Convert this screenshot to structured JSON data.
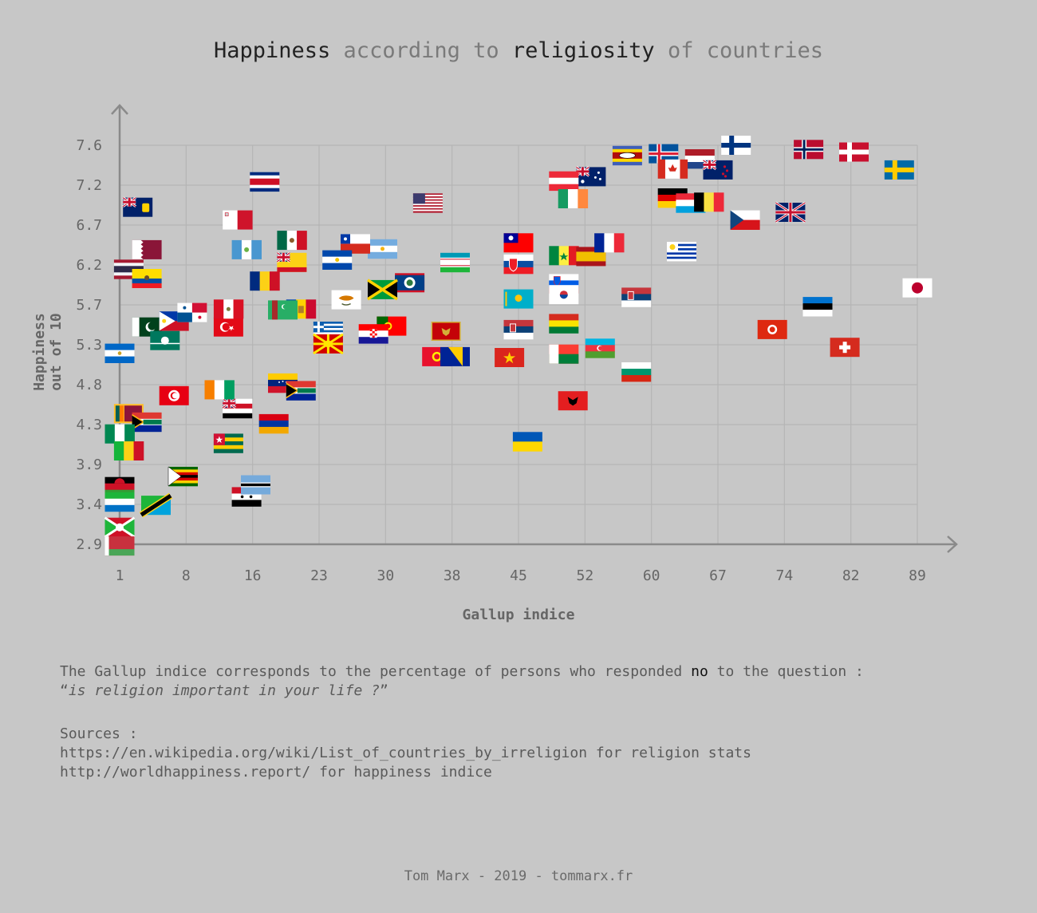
{
  "title": {
    "part1": "Happiness",
    "part2": " according to ",
    "part3": "religiosity",
    "part4": " of countries"
  },
  "x_axis_title": "Gallup indice",
  "y_axis_title": "Happiness out of 10",
  "note": {
    "line1_a": "The Gallup indice corresponds to the percentage of persons who responded ",
    "line1_b": "no",
    "line1_c": " to the question :",
    "line2_open": "“",
    "line2_q": "is religion important in your life ?",
    "line2_close": "”"
  },
  "sources": {
    "heading": "Sources :",
    "line1": "https://en.wikipedia.org/wiki/List_of_countries_by_irreligion for religion stats",
    "line2": "http://worldhappiness.report/ for happiness indice"
  },
  "footer": "Tom Marx - 2019 - tommarx.fr",
  "chart_data": {
    "type": "scatter",
    "title": "Happiness according to religiosity of countries",
    "xlabel": "Gallup indice",
    "ylabel": "Happiness out of 10",
    "x_ticks": [
      "1",
      "8",
      "16",
      "23",
      "30",
      "38",
      "45",
      "52",
      "60",
      "67",
      "74",
      "82",
      "89"
    ],
    "y_ticks": [
      "7.6",
      "7.2",
      "6.7",
      "6.2",
      "5.7",
      "5.3",
      "4.8",
      "4.3",
      "3.9",
      "3.4",
      "2.9"
    ],
    "xlim": [
      1,
      89
    ],
    "ylim": [
      2.9,
      7.6
    ],
    "grid": true,
    "marker": "country flags",
    "points": [
      {
        "flag": "finland",
        "x": 69,
        "y": 7.6
      },
      {
        "flag": "norway",
        "x": 77,
        "y": 7.55
      },
      {
        "flag": "denmark",
        "x": 82,
        "y": 7.52
      },
      {
        "flag": "sweden",
        "x": 87,
        "y": 7.31
      },
      {
        "flag": "iceland",
        "x": 61,
        "y": 7.5
      },
      {
        "flag": "eswatini",
        "x": 57,
        "y": 7.48
      },
      {
        "flag": "netherlands",
        "x": 65,
        "y": 7.44
      },
      {
        "flag": "canada",
        "x": 62,
        "y": 7.32
      },
      {
        "flag": "new_zealand",
        "x": 67,
        "y": 7.31
      },
      {
        "flag": "australia",
        "x": 53,
        "y": 7.23
      },
      {
        "flag": "austria",
        "x": 50,
        "y": 7.18
      },
      {
        "flag": "ireland",
        "x": 51,
        "y": 6.97
      },
      {
        "flag": "germany",
        "x": 62,
        "y": 6.98
      },
      {
        "flag": "luxembourg",
        "x": 64,
        "y": 6.92
      },
      {
        "flag": "belgium",
        "x": 66,
        "y": 6.93
      },
      {
        "flag": "czech",
        "x": 70,
        "y": 6.72
      },
      {
        "flag": "uk",
        "x": 75,
        "y": 6.81
      },
      {
        "flag": "usa",
        "x": 35,
        "y": 6.92
      },
      {
        "flag": "costa_rica",
        "x": 17,
        "y": 7.17
      },
      {
        "flag": "turks_caicos",
        "x": 3,
        "y": 6.87
      },
      {
        "flag": "taiwan",
        "x": 45,
        "y": 6.45
      },
      {
        "flag": "senegal",
        "x": 50,
        "y": 6.3
      },
      {
        "flag": "spain",
        "x": 53,
        "y": 6.29
      },
      {
        "flag": "france",
        "x": 55,
        "y": 6.45
      },
      {
        "flag": "uruguay",
        "x": 63,
        "y": 6.35
      },
      {
        "flag": "slovakia",
        "x": 45,
        "y": 6.2
      },
      {
        "flag": "slovenia",
        "x": 50,
        "y": 5.97
      },
      {
        "flag": "south_korea",
        "x": 50,
        "y": 5.84
      },
      {
        "flag": "serbia",
        "x": 58,
        "y": 5.81
      },
      {
        "flag": "japan",
        "x": 89,
        "y": 5.92
      },
      {
        "flag": "estonia",
        "x": 78,
        "y": 5.7
      },
      {
        "flag": "hong_kong",
        "x": 73,
        "y": 5.43
      },
      {
        "flag": "switzerland",
        "x": 81,
        "y": 5.22
      },
      {
        "flag": "kazakhstan",
        "x": 45,
        "y": 5.79
      },
      {
        "flag": "serbia_2",
        "x": 45,
        "y": 5.43
      },
      {
        "flag": "bolivia",
        "x": 50,
        "y": 5.5
      },
      {
        "flag": "madagascar",
        "x": 50,
        "y": 5.14
      },
      {
        "flag": "azerbaijan",
        "x": 54,
        "y": 5.21
      },
      {
        "flag": "bulgaria",
        "x": 58,
        "y": 4.93
      },
      {
        "flag": "vietnam",
        "x": 44,
        "y": 5.1
      },
      {
        "flag": "albania",
        "x": 51,
        "y": 4.59
      },
      {
        "flag": "ukraine",
        "x": 46,
        "y": 4.11
      },
      {
        "flag": "uzbekistan",
        "x": 38,
        "y": 6.22
      },
      {
        "flag": "belize",
        "x": 33,
        "y": 5.98
      },
      {
        "flag": "jamaica",
        "x": 30,
        "y": 5.9
      },
      {
        "flag": "argentina",
        "x": 30,
        "y": 6.38
      },
      {
        "flag": "chile",
        "x": 27,
        "y": 6.44
      },
      {
        "flag": "el_salvador",
        "x": 25,
        "y": 6.25
      },
      {
        "flag": "cyprus",
        "x": 26,
        "y": 5.78
      },
      {
        "flag": "portugal",
        "x": 31,
        "y": 5.47
      },
      {
        "flag": "croatia",
        "x": 29,
        "y": 5.38
      },
      {
        "flag": "montenegro",
        "x": 37,
        "y": 5.41
      },
      {
        "flag": "kyrgyzstan",
        "x": 36,
        "y": 5.11
      },
      {
        "flag": "bosnia",
        "x": 38,
        "y": 5.11
      },
      {
        "flag": "greece",
        "x": 24,
        "y": 5.41
      },
      {
        "flag": "macedonia",
        "x": 24,
        "y": 5.26
      },
      {
        "flag": "moldova",
        "x": 21,
        "y": 5.67
      },
      {
        "flag": "turkmenistan",
        "x": 19,
        "y": 5.66
      },
      {
        "flag": "mexico",
        "x": 20,
        "y": 6.48
      },
      {
        "flag": "colombia",
        "x": 20,
        "y": 6.22
      },
      {
        "flag": "romania",
        "x": 17,
        "y": 6.0
      },
      {
        "flag": "guatemala",
        "x": 15,
        "y": 6.37
      },
      {
        "flag": "malta",
        "x": 14,
        "y": 6.72
      },
      {
        "flag": "qatar",
        "x": 4,
        "y": 6.37
      },
      {
        "flag": "thailand",
        "x": 2,
        "y": 6.14
      },
      {
        "flag": "ecuador",
        "x": 4,
        "y": 6.03
      },
      {
        "flag": "venezuela",
        "x": 19,
        "y": 4.8
      },
      {
        "flag": "south_africa_2",
        "x": 21,
        "y": 4.71
      },
      {
        "flag": "armenia",
        "x": 18,
        "y": 4.32
      },
      {
        "flag": "zambia_group",
        "x": 14,
        "y": 4.5
      },
      {
        "flag": "togo",
        "x": 13,
        "y": 4.09
      },
      {
        "flag": "syria",
        "x": 15,
        "y": 3.46
      },
      {
        "flag": "botswana",
        "x": 16,
        "y": 3.6
      },
      {
        "flag": "ivory_coast",
        "x": 12,
        "y": 4.72
      },
      {
        "flag": "tunisia",
        "x": 7,
        "y": 4.65
      },
      {
        "flag": "sri_lanka",
        "x": 2,
        "y": 4.44
      },
      {
        "flag": "south_africa",
        "x": 4,
        "y": 4.34
      },
      {
        "flag": "nigeria",
        "x": 1,
        "y": 4.2
      },
      {
        "flag": "mali",
        "x": 2,
        "y": 4.0
      },
      {
        "flag": "zimbabwe",
        "x": 8,
        "y": 3.7
      },
      {
        "flag": "tanzania",
        "x": 5,
        "y": 3.36
      },
      {
        "flag": "malawi",
        "x": 1,
        "y": 3.58
      },
      {
        "flag": "sierra_leone",
        "x": 1,
        "y": 3.4
      },
      {
        "flag": "burundi",
        "x": 1,
        "y": 3.1
      },
      {
        "flag": "belarus",
        "x": 1,
        "y": 2.88
      },
      {
        "flag": "pakistan",
        "x": 4,
        "y": 5.46
      },
      {
        "flag": "philippines",
        "x": 7,
        "y": 5.53
      },
      {
        "flag": "macau",
        "x": 6,
        "y": 5.3
      },
      {
        "flag": "nicaragua",
        "x": 1,
        "y": 5.15
      },
      {
        "flag": "turkey",
        "x": 13,
        "y": 5.46
      },
      {
        "flag": "panama",
        "x": 9,
        "y": 5.63
      },
      {
        "flag": "peru",
        "x": 13,
        "y": 5.67
      }
    ]
  }
}
